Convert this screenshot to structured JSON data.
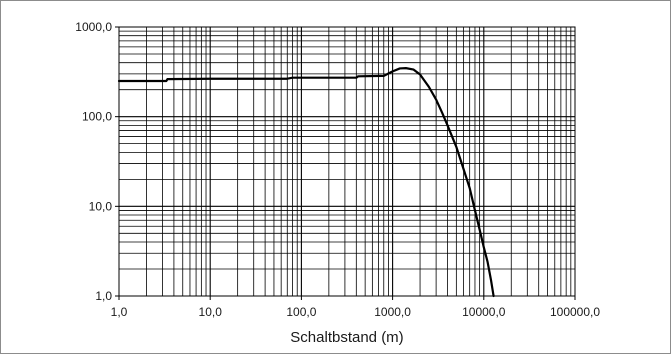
{
  "chart_data": {
    "type": "line",
    "title": "",
    "xlabel": "Schaltbstand (m)",
    "ylabel": "",
    "x_scale": "log",
    "y_scale": "log",
    "xlim": [
      1,
      100000
    ],
    "ylim": [
      1,
      1000
    ],
    "grid": true,
    "legend": "none",
    "x_tick_labels": [
      "1,0",
      "10,0",
      "100,0",
      "1000,0",
      "10000,0",
      "100000,0"
    ],
    "y_tick_labels": [
      "1,0",
      "10,0",
      "100,0",
      "1000,0"
    ],
    "series": [
      {
        "color": "#000000",
        "x": [
          1,
          3.3,
          3.4,
          10,
          30,
          70,
          80,
          100,
          300,
          400,
          420,
          800,
          1000,
          1200,
          1400,
          1700,
          2000,
          2500,
          3000,
          3500,
          4000,
          5000,
          6000,
          7000,
          8000,
          9000,
          10000,
          11000,
          12000,
          12800
        ],
        "y": [
          250,
          250,
          262,
          265,
          265,
          265,
          272,
          272,
          272,
          272,
          282,
          285,
          320,
          345,
          348,
          335,
          295,
          215,
          155,
          110,
          80,
          46,
          26,
          16,
          9,
          5.5,
          3.5,
          2.4,
          1.5,
          1.0
        ]
      }
    ]
  }
}
